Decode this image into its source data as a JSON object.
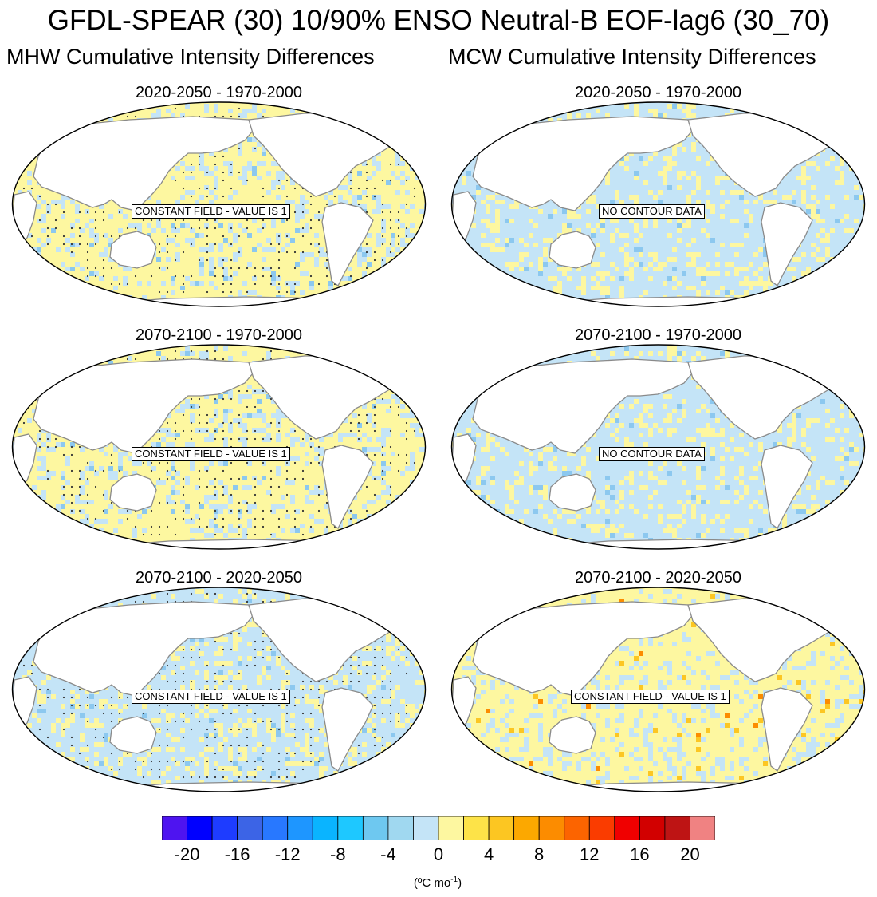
{
  "figure": {
    "title": "GFDL-SPEAR (30) 10/90% ENSO Neutral-B EOF-lag6 (30_70)",
    "left_column_title": "MHW Cumulative Intensity Differences",
    "right_column_title": "MCW Cumulative Intensity Differences"
  },
  "panels": [
    {
      "title": "2020-2050 - 1970-2000",
      "note": "CONSTANT FIELD - VALUE IS 1",
      "base": "#fdf7a0",
      "patch": "#c4e4f7",
      "dots": true,
      "warm": false
    },
    {
      "title": "2020-2050 - 1970-2000",
      "note": "NO CONTOUR DATA",
      "base": "#c4e4f7",
      "patch": "#fdf7a0",
      "dots": false,
      "warm": false
    },
    {
      "title": "2070-2100 - 1970-2000",
      "note": "CONSTANT FIELD - VALUE IS 1",
      "base": "#fdf7a0",
      "patch": "#c4e4f7",
      "dots": true,
      "warm": false
    },
    {
      "title": "2070-2100 - 1970-2000",
      "note": "NO CONTOUR DATA",
      "base": "#c4e4f7",
      "patch": "#fdf7a0",
      "dots": false,
      "warm": false
    },
    {
      "title": "2070-2100 - 2020-2050",
      "note": "CONSTANT FIELD - VALUE IS 1",
      "base": "#c4e4f7",
      "patch": "#fdf7a0",
      "dots": true,
      "warm": false
    },
    {
      "title": "2070-2100 - 2020-2050",
      "note": "CONSTANT FIELD - VALUE IS 1",
      "base": "#fdf7a0",
      "patch": "#c4e4f7",
      "dots": false,
      "warm": true
    }
  ],
  "chart_data": {
    "type": "heatmap",
    "title": "GFDL-SPEAR (30) 10/90% ENSO Neutral-B EOF-lag6 (30_70)",
    "colorbar": {
      "tick_labels": [
        "-20",
        "-16",
        "-12",
        "-8",
        "-4",
        "0",
        "4",
        "8",
        "12",
        "16",
        "20"
      ],
      "tick_values": [
        -20,
        -16,
        -12,
        -8,
        -4,
        0,
        4,
        8,
        12,
        16,
        20
      ],
      "range": [
        -22,
        22
      ],
      "units_main": "(ºC mo",
      "units_sup": "-1",
      "units_close": ")",
      "colors": [
        "#4e14f0",
        "#0000ff",
        "#1e3cff",
        "#3c64e6",
        "#2878ff",
        "#1e96ff",
        "#0ab4ff",
        "#1ec8ff",
        "#6ec8f0",
        "#a0d8f0",
        "#c4e4f7",
        "#fdf7a0",
        "#fde348",
        "#fcc622",
        "#fca800",
        "#fc8c00",
        "#fc6400",
        "#fa3c00",
        "#f00000",
        "#d20000",
        "#be1414",
        "#f08282"
      ]
    }
  }
}
